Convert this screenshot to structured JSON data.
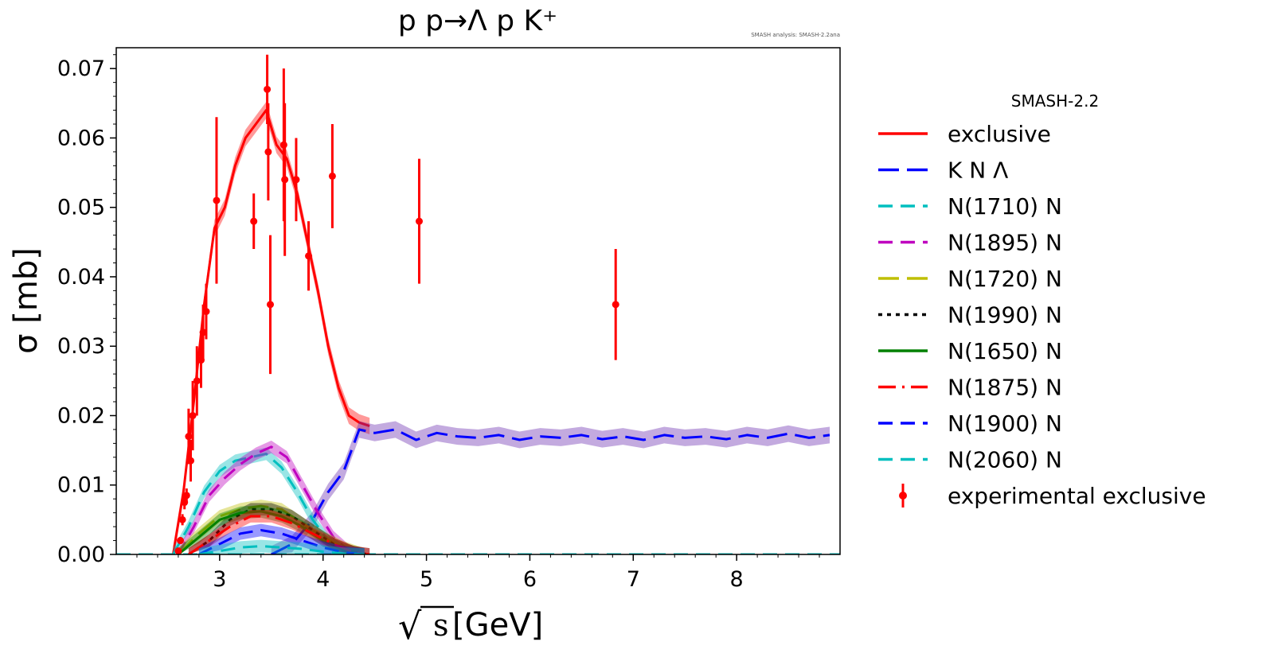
{
  "chart_data": {
    "type": "line",
    "title": "p p→Λ p K⁺",
    "annotation": "SMASH analysis: SMASH-2.2ana",
    "xlabel_sqrt": "√",
    "xlabel_s": "s",
    "xlabel_unit": "[GeV]",
    "ylabel": "σ [mb]",
    "xlim": [
      2.0,
      9.0
    ],
    "ylim": [
      0.0,
      0.073
    ],
    "x_ticks": [
      3,
      4,
      5,
      6,
      7,
      8
    ],
    "x_tick_labels": [
      "3",
      "4",
      "5",
      "6",
      "7",
      "8"
    ],
    "y_ticks": [
      0.0,
      0.01,
      0.02,
      0.03,
      0.04,
      0.05,
      0.06,
      0.07
    ],
    "y_tick_labels": [
      "0.00",
      "0.01",
      "0.02",
      "0.03",
      "0.04",
      "0.05",
      "0.06",
      "0.07"
    ],
    "grid": false,
    "legend_title": "SMASH-2.2",
    "legend_position": "right, outside plot",
    "series": [
      {
        "name": "exclusive",
        "color": "#ff0000",
        "dash": "solid",
        "width": 3,
        "x": [
          2.55,
          2.65,
          2.75,
          2.85,
          2.95,
          3.05,
          3.15,
          3.25,
          3.35,
          3.45,
          3.55,
          3.65,
          3.75,
          3.85,
          3.95,
          4.05,
          4.15,
          4.25,
          4.35,
          4.45
        ],
        "y": [
          0.0,
          0.009,
          0.022,
          0.036,
          0.047,
          0.05,
          0.056,
          0.06,
          0.062,
          0.064,
          0.059,
          0.057,
          0.052,
          0.045,
          0.038,
          0.03,
          0.024,
          0.02,
          0.019,
          0.0185
        ]
      },
      {
        "name": "K N Λ",
        "color": "#0000ff",
        "dash": "long-dash",
        "width": 3,
        "x": [
          3.5,
          3.7,
          3.9,
          4.05,
          4.2,
          4.35,
          4.5,
          4.7,
          4.9,
          5.1,
          5.3,
          5.5,
          5.7,
          5.9,
          6.1,
          6.3,
          6.5,
          6.7,
          6.9,
          7.1,
          7.3,
          7.5,
          7.7,
          7.9,
          8.1,
          8.3,
          8.5,
          8.7,
          8.9
        ],
        "y": [
          0.0,
          0.0015,
          0.005,
          0.009,
          0.012,
          0.018,
          0.0175,
          0.018,
          0.0165,
          0.0175,
          0.017,
          0.0168,
          0.0172,
          0.0165,
          0.017,
          0.0168,
          0.0172,
          0.0166,
          0.017,
          0.0165,
          0.0172,
          0.0168,
          0.017,
          0.0166,
          0.0172,
          0.0168,
          0.0174,
          0.0168,
          0.0172
        ]
      },
      {
        "name": "N(1710) N",
        "color": "#00bfbf",
        "dash": "dash",
        "width": 3,
        "x": [
          2.55,
          2.7,
          2.85,
          3.0,
          3.15,
          3.3,
          3.45,
          3.6,
          3.75,
          3.9,
          4.05,
          4.2,
          4.35
        ],
        "y": [
          0.0,
          0.004,
          0.009,
          0.012,
          0.0135,
          0.014,
          0.0145,
          0.0125,
          0.009,
          0.005,
          0.002,
          0.0005,
          0.0
        ]
      },
      {
        "name": "N(1895) N",
        "color": "#bf00bf",
        "dash": "dash",
        "width": 3,
        "x": [
          2.6,
          2.75,
          2.9,
          3.05,
          3.2,
          3.35,
          3.5,
          3.65,
          3.8,
          3.95,
          4.1,
          4.25,
          4.4
        ],
        "y": [
          0.0,
          0.004,
          0.0085,
          0.011,
          0.013,
          0.0145,
          0.0155,
          0.014,
          0.01,
          0.006,
          0.0025,
          0.0005,
          0.0
        ]
      },
      {
        "name": "N(1720) N",
        "color": "#bfbf00",
        "dash": "long-dash",
        "width": 3,
        "x": [
          2.6,
          2.8,
          3.0,
          3.2,
          3.4,
          3.6,
          3.8,
          4.0,
          4.2,
          4.4
        ],
        "y": [
          0.0,
          0.003,
          0.0055,
          0.0065,
          0.007,
          0.0065,
          0.0045,
          0.0025,
          0.001,
          0.0
        ]
      },
      {
        "name": "N(1990) N",
        "color": "#000000",
        "dash": "dot",
        "width": 3,
        "x": [
          2.7,
          2.9,
          3.1,
          3.3,
          3.5,
          3.7,
          3.9,
          4.1,
          4.3,
          4.45
        ],
        "y": [
          0.0,
          0.002,
          0.005,
          0.0065,
          0.0065,
          0.0055,
          0.0035,
          0.0015,
          0.0003,
          0.0
        ]
      },
      {
        "name": "N(1650) N",
        "color": "#008000",
        "dash": "solid",
        "width": 3,
        "x": [
          2.6,
          2.8,
          3.0,
          3.2,
          3.4,
          3.6,
          3.8,
          4.0,
          4.2,
          4.4
        ],
        "y": [
          0.0,
          0.0025,
          0.005,
          0.006,
          0.0062,
          0.0055,
          0.004,
          0.002,
          0.0007,
          0.0
        ]
      },
      {
        "name": "N(1875) N",
        "color": "#ff0000",
        "dash": "dash-dot",
        "width": 3,
        "x": [
          2.7,
          2.9,
          3.1,
          3.3,
          3.5,
          3.7,
          3.9,
          4.1,
          4.3,
          4.45
        ],
        "y": [
          0.0,
          0.002,
          0.004,
          0.0055,
          0.0055,
          0.0045,
          0.003,
          0.0015,
          0.0003,
          0.0
        ]
      },
      {
        "name": "N(1900) N",
        "color": "#0000ff",
        "dash": "dash",
        "width": 3,
        "x": [
          2.8,
          3.0,
          3.2,
          3.4,
          3.6,
          3.8,
          4.0,
          4.2,
          4.4
        ],
        "y": [
          0.0,
          0.0015,
          0.003,
          0.0035,
          0.003,
          0.002,
          0.001,
          0.0003,
          0.0
        ]
      },
      {
        "name": "N(2060) N",
        "color": "#00bfbf",
        "dash": "dash",
        "width": 3,
        "x": [
          2.8,
          3.0,
          3.2,
          3.4,
          3.6,
          3.8,
          4.0,
          4.2,
          4.4
        ],
        "y": [
          0.0,
          0.0005,
          0.001,
          0.0012,
          0.001,
          0.0008,
          0.0004,
          0.0001,
          0.0
        ]
      }
    ],
    "experimental": {
      "name": "experimental exclusive",
      "color": "#ff0000",
      "points": [
        {
          "x": 2.6,
          "y": 0.0005,
          "err": 0.0003
        },
        {
          "x": 2.62,
          "y": 0.002,
          "err": 0.0005
        },
        {
          "x": 2.64,
          "y": 0.005,
          "err": 0.0008
        },
        {
          "x": 2.66,
          "y": 0.0075,
          "err": 0.001
        },
        {
          "x": 2.68,
          "y": 0.0085,
          "err": 0.001
        },
        {
          "x": 2.7,
          "y": 0.017,
          "err": 0.004
        },
        {
          "x": 2.72,
          "y": 0.0135,
          "err": 0.003
        },
        {
          "x": 2.74,
          "y": 0.02,
          "err": 0.005
        },
        {
          "x": 2.78,
          "y": 0.025,
          "err": 0.005
        },
        {
          "x": 2.82,
          "y": 0.028,
          "err": 0.004
        },
        {
          "x": 2.84,
          "y": 0.032,
          "err": 0.004
        },
        {
          "x": 2.87,
          "y": 0.035,
          "err": 0.004
        },
        {
          "x": 2.97,
          "y": 0.051,
          "err": 0.012
        },
        {
          "x": 3.33,
          "y": 0.048,
          "err": 0.004
        },
        {
          "x": 3.46,
          "y": 0.067,
          "err": 0.005
        },
        {
          "x": 3.47,
          "y": 0.058,
          "err": 0.007
        },
        {
          "x": 3.49,
          "y": 0.036,
          "err": 0.01
        },
        {
          "x": 3.62,
          "y": 0.059,
          "err": 0.011
        },
        {
          "x": 3.63,
          "y": 0.054,
          "err": 0.011
        },
        {
          "x": 3.74,
          "y": 0.054,
          "err": 0.006
        },
        {
          "x": 3.86,
          "y": 0.043,
          "err": 0.005
        },
        {
          "x": 4.09,
          "y": 0.0545,
          "err": 0.0075
        },
        {
          "x": 4.93,
          "y": 0.048,
          "err": 0.009
        },
        {
          "x": 6.83,
          "y": 0.036,
          "err": 0.008
        }
      ]
    }
  }
}
